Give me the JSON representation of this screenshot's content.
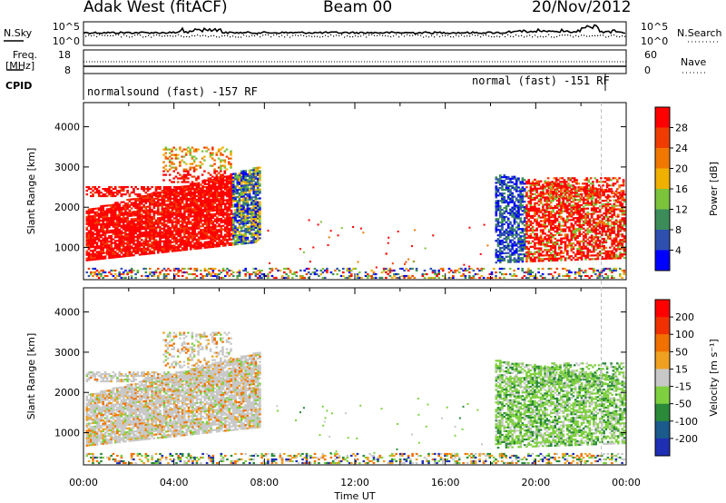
{
  "header": {
    "station": "Adak West (fitACF)",
    "beam": "Beam 00",
    "date": "20/Nov/2012"
  },
  "top_panels": {
    "nsky_label": "N.Sky",
    "nsearch_label": "N.Search",
    "freq_label_1": "Freq.",
    "freq_label_2": "[MHz]",
    "nave_label": "Nave",
    "cpid_label": "CPID",
    "noise_ticks_left": [
      "10^5",
      "10^0"
    ],
    "noise_ticks_right": [
      "10^5",
      "10^0"
    ],
    "freq_ticks": [
      "18",
      "8"
    ],
    "nave_ticks": [
      "60",
      "0"
    ],
    "cpid_left": "normalsound (fast) -157 RF",
    "cpid_right": "normal (fast) -151 RF"
  },
  "chart_data": [
    {
      "type": "heatmap",
      "panel": "power",
      "ylabel": "Slant Range [km]",
      "ylim": [
        200,
        4600
      ],
      "yticks": [
        "1000",
        "2000",
        "3000",
        "4000"
      ],
      "xlim": [
        0,
        24
      ],
      "colorbar_label": "Power [dB]",
      "colorbar_ticks": [
        "4",
        "8",
        "12",
        "16",
        "20",
        "24",
        "28"
      ],
      "colorbar_colors": [
        "#0000ff",
        "#2f4faf",
        "#3c8c5a",
        "#7cc33c",
        "#f0b000",
        "#f07800",
        "#f03c00",
        "#ff0000"
      ]
    },
    {
      "type": "heatmap",
      "panel": "velocity",
      "ylabel": "Slant Range [km]",
      "ylim": [
        200,
        4600
      ],
      "yticks": [
        "1000",
        "2000",
        "3000",
        "4000"
      ],
      "xlim": [
        0,
        24
      ],
      "xticks": [
        "00:00",
        "04:00",
        "08:00",
        "12:00",
        "16:00",
        "20:00",
        "00:00"
      ],
      "xlabel": "Time UT",
      "colorbar_label": "Velocity [m s⁻¹]",
      "colorbar_ticks": [
        "200",
        "100",
        "50",
        "15",
        "-15",
        "-50",
        "-100",
        "-200"
      ],
      "colorbar_colors": [
        "#1e2fb4",
        "#1a5a8c",
        "#2a8a3a",
        "#7fd040",
        "#c8c8c8",
        "#f0a020",
        "#f07000",
        "#f03000",
        "#ff0000"
      ]
    }
  ]
}
